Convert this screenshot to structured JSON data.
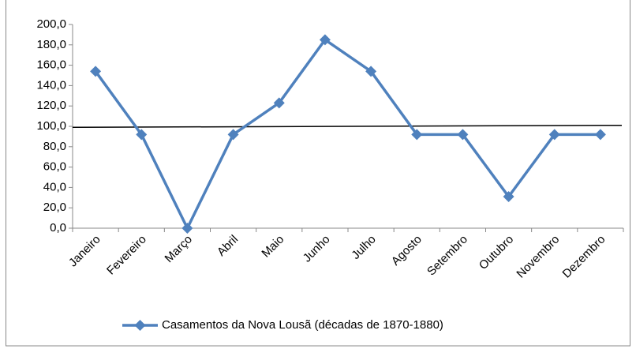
{
  "chart_data": {
    "type": "line",
    "categories": [
      "Janeiro",
      "Fevereiro",
      "Março",
      "Abril",
      "Maio",
      "Junho",
      "Julho",
      "Agosto",
      "Setembro",
      "Outubro",
      "Novembro",
      "Dezembro"
    ],
    "series": [
      {
        "name": "Casamentos da Nova Lousã (décadas de 1870-1880)",
        "color": "#4f81bd",
        "values": [
          154,
          92,
          0,
          92,
          123,
          185,
          154,
          92,
          92,
          31,
          92,
          92
        ]
      }
    ],
    "reference_line": {
      "values": [
        99,
        101
      ],
      "color": "#000000"
    },
    "ylim": [
      0,
      200
    ],
    "yticks": [
      {
        "value": 0,
        "label": "0,0"
      },
      {
        "value": 20,
        "label": "20,0"
      },
      {
        "value": 40,
        "label": "40,0"
      },
      {
        "value": 60,
        "label": "60,0"
      },
      {
        "value": 80,
        "label": "80,0"
      },
      {
        "value": 100,
        "label": "100,0"
      },
      {
        "value": 120,
        "label": "120,0"
      },
      {
        "value": 140,
        "label": "140,0"
      },
      {
        "value": 160,
        "label": "160,0"
      },
      {
        "value": 180,
        "label": "180,0"
      },
      {
        "value": 200,
        "label": "200,0"
      }
    ],
    "grid": false,
    "legend": "bottom"
  }
}
